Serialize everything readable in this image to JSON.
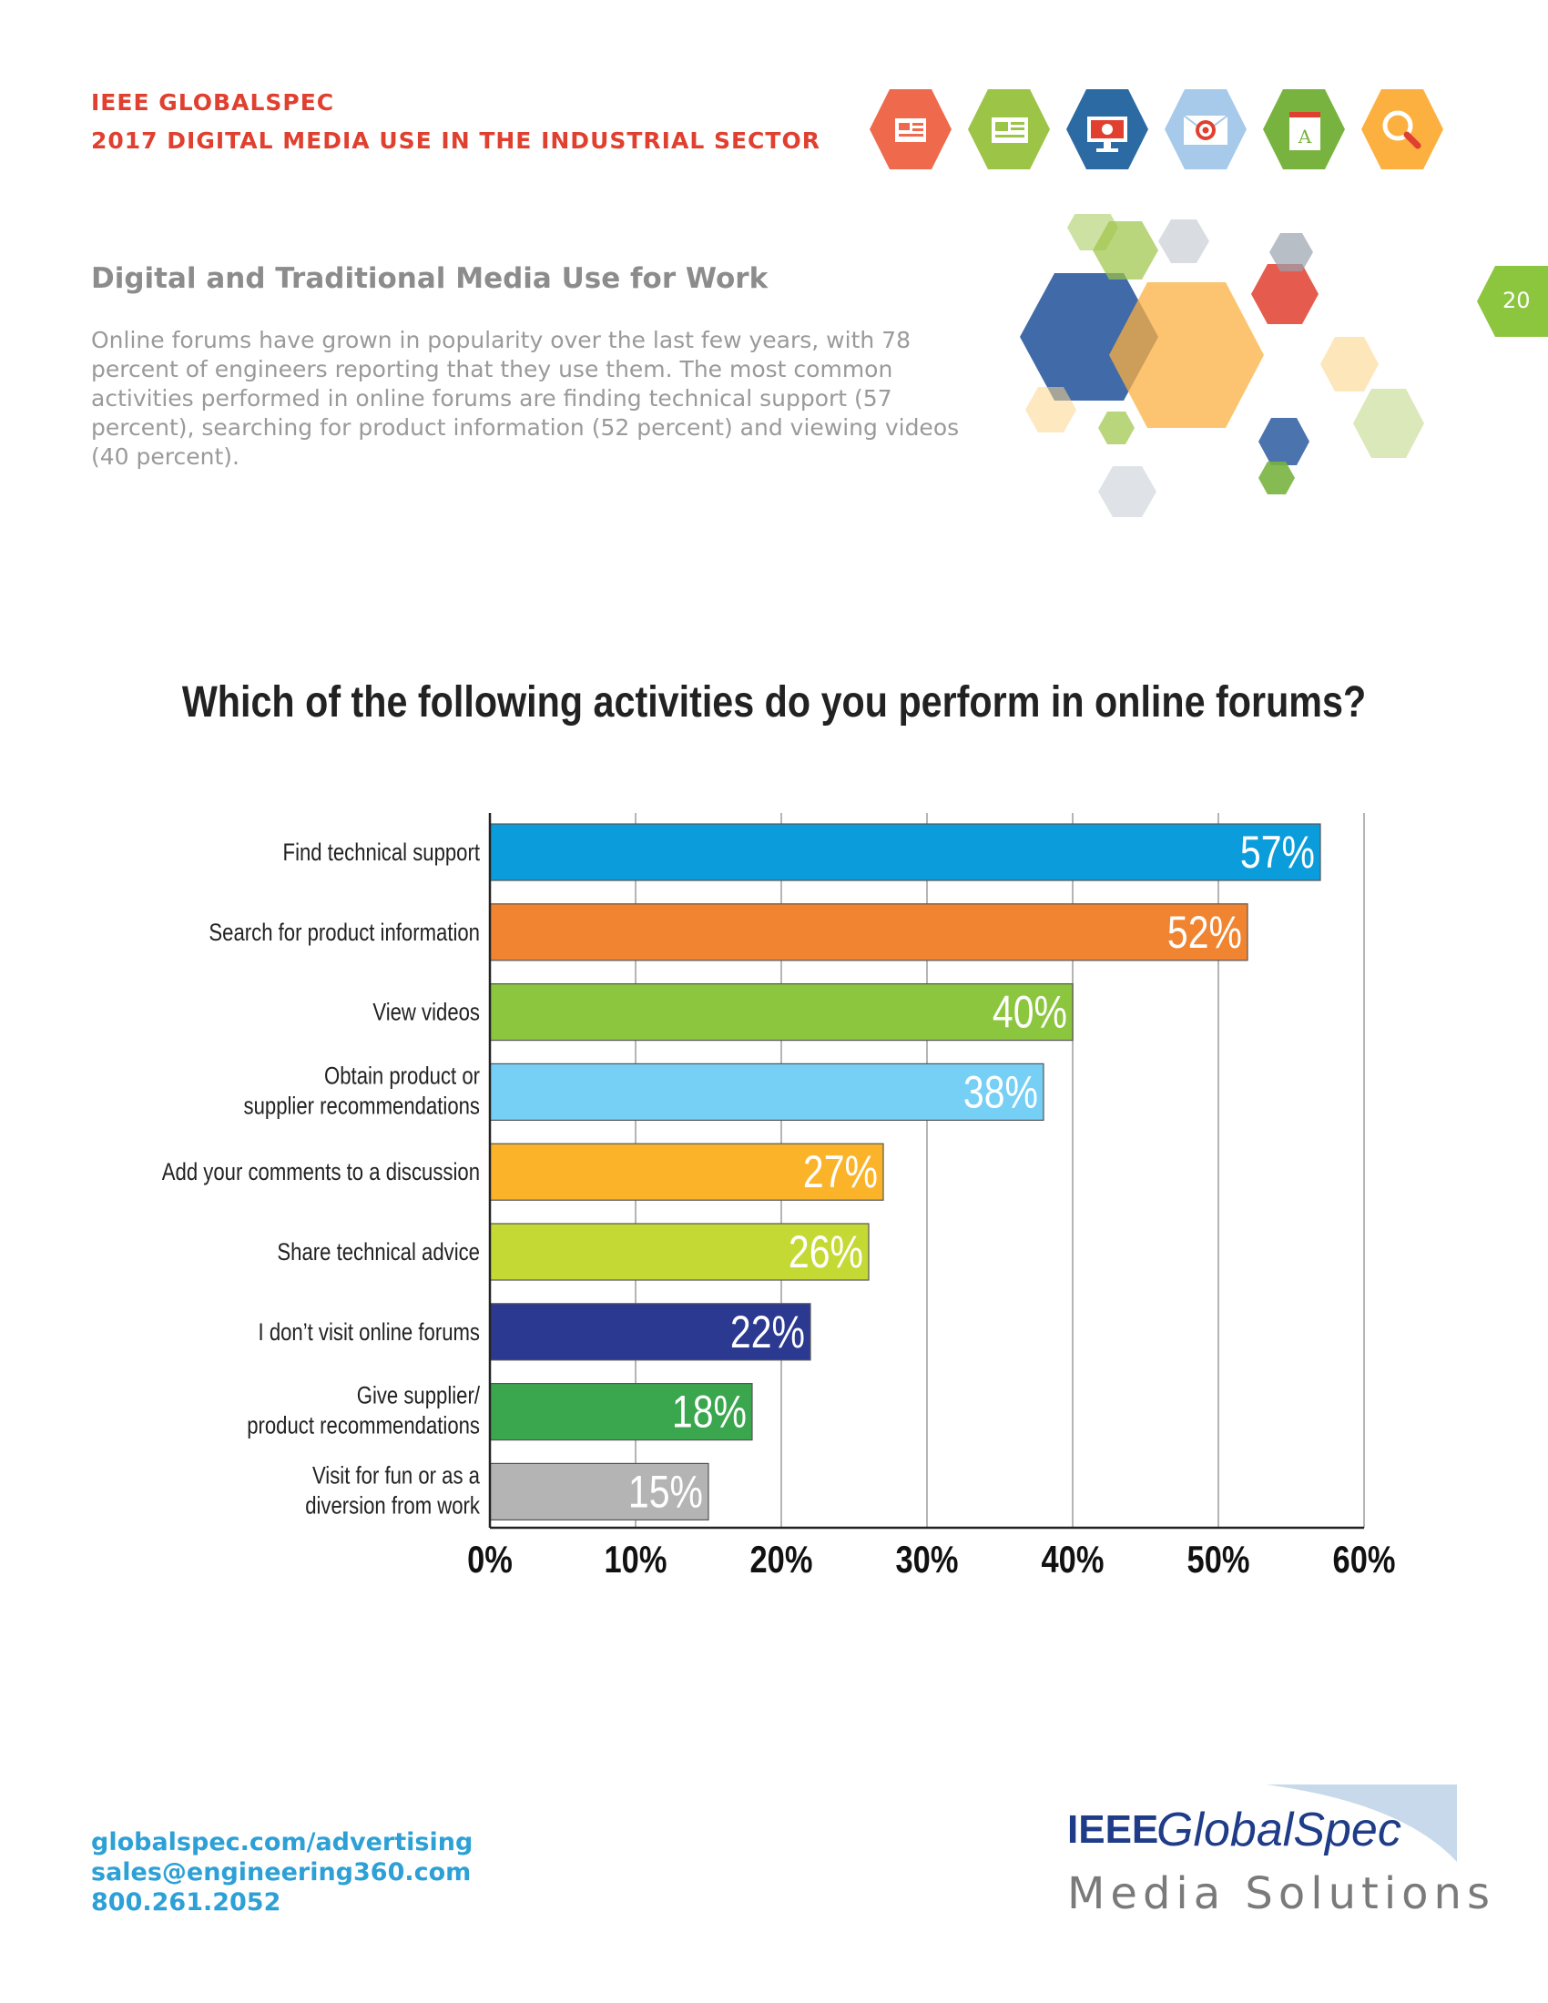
{
  "header": {
    "line1": "IEEE GLOBALSPEC",
    "line2": "2017 DIGITAL MEDIA USE IN THE INDUSTRIAL SECTOR",
    "icons": [
      {
        "name": "newspaper-icon",
        "color": "#ef6a4c"
      },
      {
        "name": "document-icon",
        "color": "#9cc446"
      },
      {
        "name": "monitor-icon",
        "color": "#2c6aa3"
      },
      {
        "name": "email-target-icon",
        "color": "#a7c9ea"
      },
      {
        "name": "book-icon",
        "color": "#79b33f"
      },
      {
        "name": "search-icon",
        "color": "#fbb040"
      }
    ]
  },
  "section": {
    "title": "Digital and Traditional Media Use for Work",
    "intro": "Online forums have grown in popularity over the last few years, with 78 percent of engineers reporting that they use them. The most common activities performed in online forums are finding technical support (57 percent), searching for product information (52 percent) and viewing videos (40 percent)."
  },
  "page_number": "20",
  "chart_data": {
    "type": "bar",
    "orientation": "horizontal",
    "title": "Which of the following activities do you perform in online forums?",
    "xlabel": "",
    "ylabel": "",
    "xlim": [
      0,
      60
    ],
    "grid": true,
    "categories": [
      [
        "Find technical support"
      ],
      [
        "Search for product information"
      ],
      [
        "View videos"
      ],
      [
        "Obtain product or",
        "supplier recommendations"
      ],
      [
        "Add your comments to a discussion"
      ],
      [
        "Share technical advice"
      ],
      [
        "I don’t visit online forums"
      ],
      [
        "Give supplier/",
        "product recommendations"
      ],
      [
        "Visit for fun or as a",
        "diversion from work"
      ]
    ],
    "values": [
      57,
      52,
      40,
      38,
      27,
      26,
      22,
      18,
      15
    ],
    "value_labels": [
      "57%",
      "52%",
      "40%",
      "38%",
      "27%",
      "26%",
      "22%",
      "18%",
      "15%"
    ],
    "colors": [
      "#0b9ddb",
      "#f18431",
      "#8cc63f",
      "#76cff4",
      "#fbb429",
      "#c5d935",
      "#2b3990",
      "#3aa64d",
      "#b4b4b4"
    ],
    "ticks": [
      0,
      10,
      20,
      30,
      40,
      50,
      60
    ],
    "tick_labels": [
      "0%",
      "10%",
      "20%",
      "30%",
      "40%",
      "50%",
      "60%"
    ]
  },
  "footer": {
    "website": "globalspec.com/advertising",
    "email": "sales@engineering360.com",
    "phone": "800.261.2052"
  },
  "logo": {
    "ieee": "IEEE",
    "brand": "GlobalSpec",
    "tagline": "Media Solutions",
    "color": "#1f3c88"
  }
}
